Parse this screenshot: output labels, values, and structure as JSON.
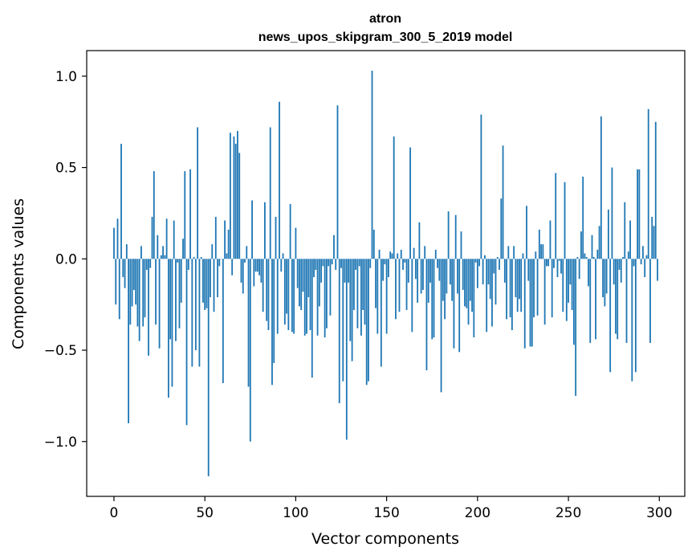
{
  "chart_data": {
    "type": "bar",
    "title": [
      "atron",
      "news_upos_skipgram_300_5_2019 model"
    ],
    "xlabel": "Vector components",
    "ylabel": "Components values",
    "xlim": [
      -15,
      314
    ],
    "ylim": [
      -1.3,
      1.14
    ],
    "xticks": [
      0,
      50,
      100,
      150,
      200,
      250,
      300
    ],
    "xtick_labels": [
      "0",
      "50",
      "100",
      "150",
      "200",
      "250",
      "300"
    ],
    "yticks": [
      -1.0,
      -0.5,
      0.0,
      0.5,
      1.0
    ],
    "ytick_labels": [
      "−1.0",
      "−0.5",
      "0.0",
      "0.5",
      "1.0"
    ],
    "grid": false,
    "color": "#1f77b4",
    "values": [
      0.17,
      -0.25,
      0.22,
      -0.33,
      0.63,
      -0.1,
      -0.16,
      0.08,
      -0.9,
      -0.36,
      -0.26,
      -0.17,
      -0.25,
      -0.37,
      -0.45,
      0.07,
      -0.37,
      -0.32,
      -0.06,
      -0.53,
      -0.05,
      0.23,
      0.48,
      -0.36,
      0.13,
      -0.49,
      0.02,
      0.07,
      0.02,
      0.22,
      -0.76,
      -0.44,
      -0.7,
      0.21,
      -0.45,
      -0.02,
      -0.38,
      -0.24,
      0.11,
      0.48,
      -0.91,
      -0.06,
      0.49,
      -0.59,
      0.01,
      -0.5,
      0.72,
      -0.59,
      0.01,
      -0.24,
      -0.28,
      -0.27,
      -1.19,
      -0.21,
      0.08,
      -0.29,
      0.23,
      -0.21,
      -0.04,
      0.0,
      -0.68,
      0.21,
      0.03,
      0.16,
      0.69,
      -0.09,
      0.67,
      0.63,
      0.7,
      0.58,
      -0.13,
      -0.19,
      -0.02,
      0.07,
      -0.7,
      -1.0,
      0.32,
      -0.15,
      -0.07,
      -0.07,
      -0.09,
      -0.13,
      -0.29,
      0.31,
      -0.34,
      -0.39,
      0.72,
      -0.69,
      -0.57,
      0.23,
      -0.41,
      0.86,
      -0.07,
      0.03,
      -0.36,
      -0.3,
      -0.39,
      0.3,
      -0.4,
      -0.41,
      0.17,
      -0.16,
      -0.26,
      -0.28,
      -0.18,
      -0.42,
      -0.41,
      -0.21,
      -0.39,
      -0.65,
      -0.1,
      -0.06,
      -0.42,
      -0.26,
      -0.13,
      -0.04,
      -0.43,
      -0.38,
      -0.04,
      -0.31,
      -0.03,
      0.13,
      -0.06,
      0.84,
      -0.79,
      -0.05,
      -0.67,
      -0.13,
      -0.99,
      -0.13,
      -0.45,
      -0.56,
      -0.28,
      -0.06,
      -0.38,
      -0.04,
      -0.42,
      -0.28,
      -0.36,
      -0.69,
      -0.67,
      -0.05,
      1.03,
      0.16,
      -0.27,
      -0.41,
      0.05,
      -0.59,
      -0.12,
      -0.03,
      -0.41,
      -0.1,
      0.04,
      0.03,
      0.67,
      -0.33,
      0.03,
      -0.29,
      0.05,
      -0.06,
      -0.02,
      -0.28,
      -0.13,
      0.61,
      -0.4,
      0.06,
      -0.11,
      -0.24,
      0.2,
      -0.19,
      -0.17,
      0.07,
      -0.61,
      -0.24,
      -0.13,
      -0.44,
      -0.43,
      0.05,
      -0.05,
      -0.12,
      -0.73,
      -0.23,
      -0.33,
      -0.19,
      0.26,
      -0.14,
      -0.23,
      -0.49,
      0.24,
      -0.19,
      -0.51,
      0.15,
      -0.17,
      -0.26,
      -0.27,
      -0.36,
      -0.23,
      -0.29,
      -0.43,
      -0.02,
      -0.16,
      -0.04,
      0.79,
      -0.14,
      0.02,
      -0.4,
      -0.14,
      -0.22,
      -0.37,
      -0.08,
      -0.25,
      0.01,
      -0.06,
      0.33,
      0.62,
      -0.13,
      -0.33,
      0.07,
      -0.32,
      -0.39,
      0.07,
      -0.21,
      -0.29,
      -0.22,
      -0.29,
      0.03,
      -0.49,
      0.29,
      -0.12,
      -0.48,
      -0.48,
      -0.32,
      0.04,
      -0.31,
      0.16,
      0.08,
      0.08,
      -0.36,
      -0.04,
      -0.04,
      0.21,
      -0.32,
      -0.05,
      0.47,
      -0.1,
      -0.01,
      -0.08,
      -0.29,
      0.42,
      -0.34,
      -0.24,
      -0.14,
      -0.28,
      -0.47,
      -0.75,
      0.01,
      -0.11,
      0.15,
      0.45,
      0.03,
      0.01,
      -0.15,
      -0.46,
      0.13,
      0.01,
      -0.44,
      0.05,
      0.18,
      0.78,
      -0.21,
      -0.26,
      -0.19,
      0.27,
      -0.62,
      0.5,
      -0.14,
      -0.41,
      -0.44,
      -0.06,
      -0.13,
      0.01,
      0.31,
      -0.46,
      0.04,
      0.21,
      -0.67,
      -0.04,
      -0.62,
      0.49,
      0.49,
      -0.03,
      0.07,
      -0.1,
      0.02,
      0.82,
      -0.46,
      0.23,
      0.18,
      0.75,
      -0.12
    ]
  }
}
